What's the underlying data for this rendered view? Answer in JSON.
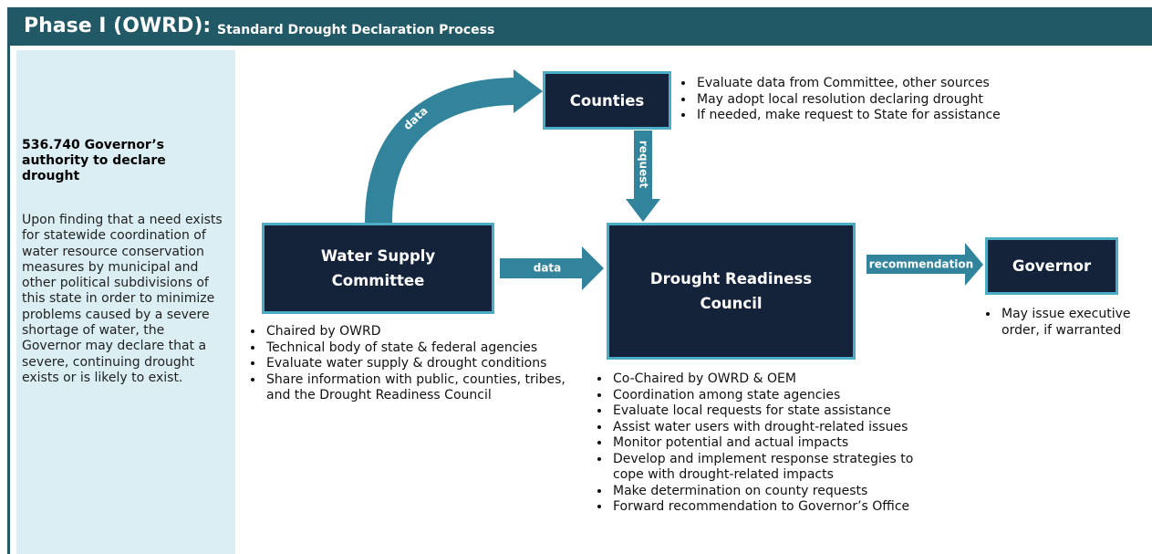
{
  "header": {
    "title": "Phase I (OWRD):",
    "subtitle": "Standard Drought Declaration Process"
  },
  "sidebar": {
    "heading": "536.740 Governor’s authority to declare drought",
    "body": "Upon finding that a need exists for statewide coordination of water resource conservation measures by municipal and other political subdivisions of this state in order to minimize problems caused by a severe shortage of water, the Governor may declare that a severe, continuing drought exists or is likely to exist."
  },
  "nodes": [
    {
      "label": "Counties",
      "bullets": [
        "Evaluate data from Committee, other sources",
        "May adopt local resolution declaring drought",
        "If needed, make request to State for assistance"
      ]
    },
    {
      "label": "Water Supply Committee",
      "bullets": [
        "Chaired by OWRD",
        "Technical body of state & federal agencies",
        "Evaluate water supply & drought conditions",
        "Share information with public, counties, tribes, and the Drought Readiness Council"
      ]
    },
    {
      "label": "Drought Readiness Council",
      "bullets": [
        "Co-Chaired by OWRD & OEM",
        "Coordination among state agencies",
        "Evaluate local requests for state assistance",
        "Assist water users with drought-related issues",
        "Monitor potential and actual impacts",
        "Develop and implement response strategies to cope with drought-related impacts",
        "Make determination on county requests",
        "Forward recommendation to Governor’s Office"
      ]
    },
    {
      "label": "Governor",
      "bullets": [
        "May issue executive order, if warranted"
      ]
    }
  ],
  "edges": [
    {
      "label": "data"
    },
    {
      "label": "request"
    },
    {
      "label": "data"
    },
    {
      "label": "recommendation"
    }
  ]
}
